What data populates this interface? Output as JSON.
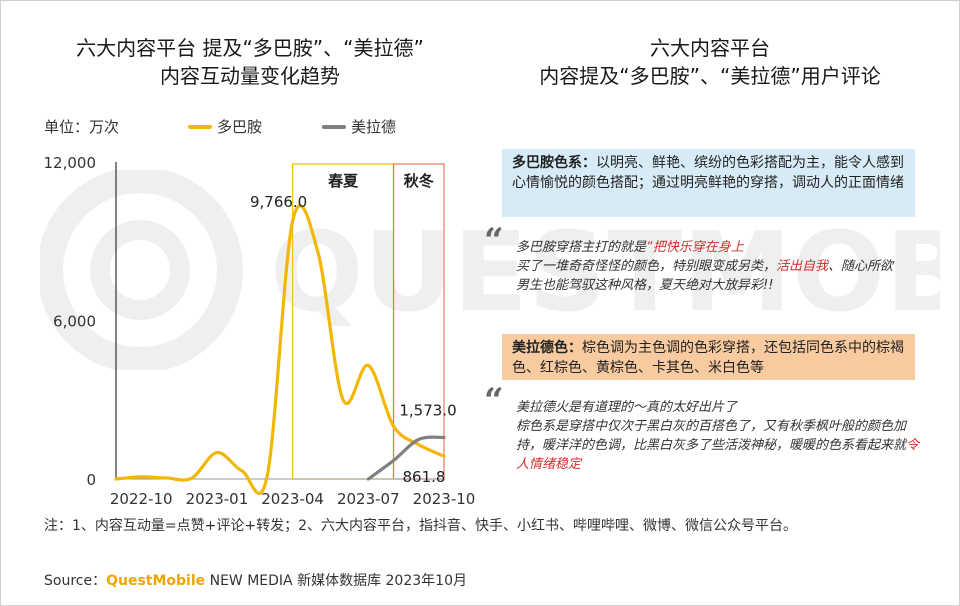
{
  "titles": {
    "left_line1": "六大内容平台 提及“多巴胺”、“美拉德”",
    "left_line2": "内容互动量变化趋势",
    "right_line1": "六大内容平台",
    "right_line2": "内容提及“多巴胺”、“美拉德”用户评论"
  },
  "unit_label": "单位：万次",
  "legend": [
    {
      "name": "多巴胺",
      "color": "#f2b705"
    },
    {
      "name": "美拉德",
      "color": "#7f7f7f"
    }
  ],
  "chart_data": {
    "type": "line",
    "yticks": [
      "12,000",
      "6,000",
      "0"
    ],
    "ylim": [
      0,
      12000
    ],
    "xticks": [
      "2022-10",
      "2023-01",
      "2023-04",
      "2023-07",
      "2023-10"
    ],
    "xrange": [
      "2022-09",
      "2023-10"
    ],
    "regions": [
      {
        "label": "春夏",
        "from": "2023-04",
        "to": "2023-08",
        "color": "#f2c200"
      },
      {
        "label": "秋冬",
        "from": "2023-08",
        "to": "2023-10",
        "color": "#e07a55"
      }
    ],
    "series": [
      {
        "name": "多巴胺",
        "color": "#f2b705",
        "points": [
          [
            "2022-09",
            0
          ],
          [
            "2022-10",
            80
          ],
          [
            "2022-11",
            40
          ],
          [
            "2022-12",
            30
          ],
          [
            "2023-01",
            1000
          ],
          [
            "2023-02",
            300
          ],
          [
            "2023-03",
            150
          ],
          [
            "2023-04",
            9766
          ],
          [
            "2023-05",
            8600
          ],
          [
            "2023-06",
            3000
          ],
          [
            "2023-07",
            4300
          ],
          [
            "2023-08",
            2000
          ],
          [
            "2023-09",
            1300
          ],
          [
            "2023-10",
            861.8
          ]
        ]
      },
      {
        "name": "美拉德",
        "color": "#7f7f7f",
        "points": [
          [
            "2023-07",
            0
          ],
          [
            "2023-08",
            700
          ],
          [
            "2023-09",
            1500
          ],
          [
            "2023-10",
            1573.0
          ]
        ]
      }
    ],
    "annotations": [
      {
        "text": "9,766.0",
        "series": "多巴胺",
        "x": "2023-04"
      },
      {
        "text": "1,573.0",
        "series": "美拉德",
        "x": "2023-10"
      },
      {
        "text": "861.8",
        "series": "多巴胺",
        "x": "2023-10"
      }
    ]
  },
  "panel": {
    "box1_title": "多巴胺色系：",
    "box1_text": "以明亮、鲜艳、缤纷的色彩搭配为主，能令人感到心情愉悦的颜色搭配；通过明亮鲜艳的穿搭，调动人的正面情绪",
    "quote1": {
      "l1a": "多巴胺穿搭主打的就是",
      "l1b": "“把快乐穿在身上",
      "l2a": "买了一堆奇奇怪怪的颜色，特别眼变成另类，",
      "l2b": "活出自我",
      "l2c": "、随心所欲",
      "l3": "男生也能驾驭这种风格，夏天绝对大放异彩!!"
    },
    "box2_title": "美拉德色：",
    "box2_text": "棕色调为主色调的色彩穿搭，还包括同色系中的棕褐色、红棕色、黄棕色、卡其色、米白色等",
    "quote2": {
      "l1": "美拉德火是有道理的～真的太好出片了",
      "l2a": "棕色系是穿搭中仅次于黑白灰的百搭色了，又有秋季枫叶般的颜色加持，暖洋洋的色调，比黑白灰多了些活泼神秘，暖暖的色系看起来就",
      "l2b": "令人情绪稳定"
    },
    "quote_mark": "“"
  },
  "note": "注：1、内容互动量=点赞+评论+转发；2、六大内容平台，指抖音、快手、小红书、哔哩哔哩、微博、微信公众号平台。",
  "source": {
    "prefix": "Source：",
    "brand": "QuestMobile",
    "rest": " NEW MEDIA 新媒体数据库 2023年10月"
  },
  "watermark": "QUESTMOBILE"
}
